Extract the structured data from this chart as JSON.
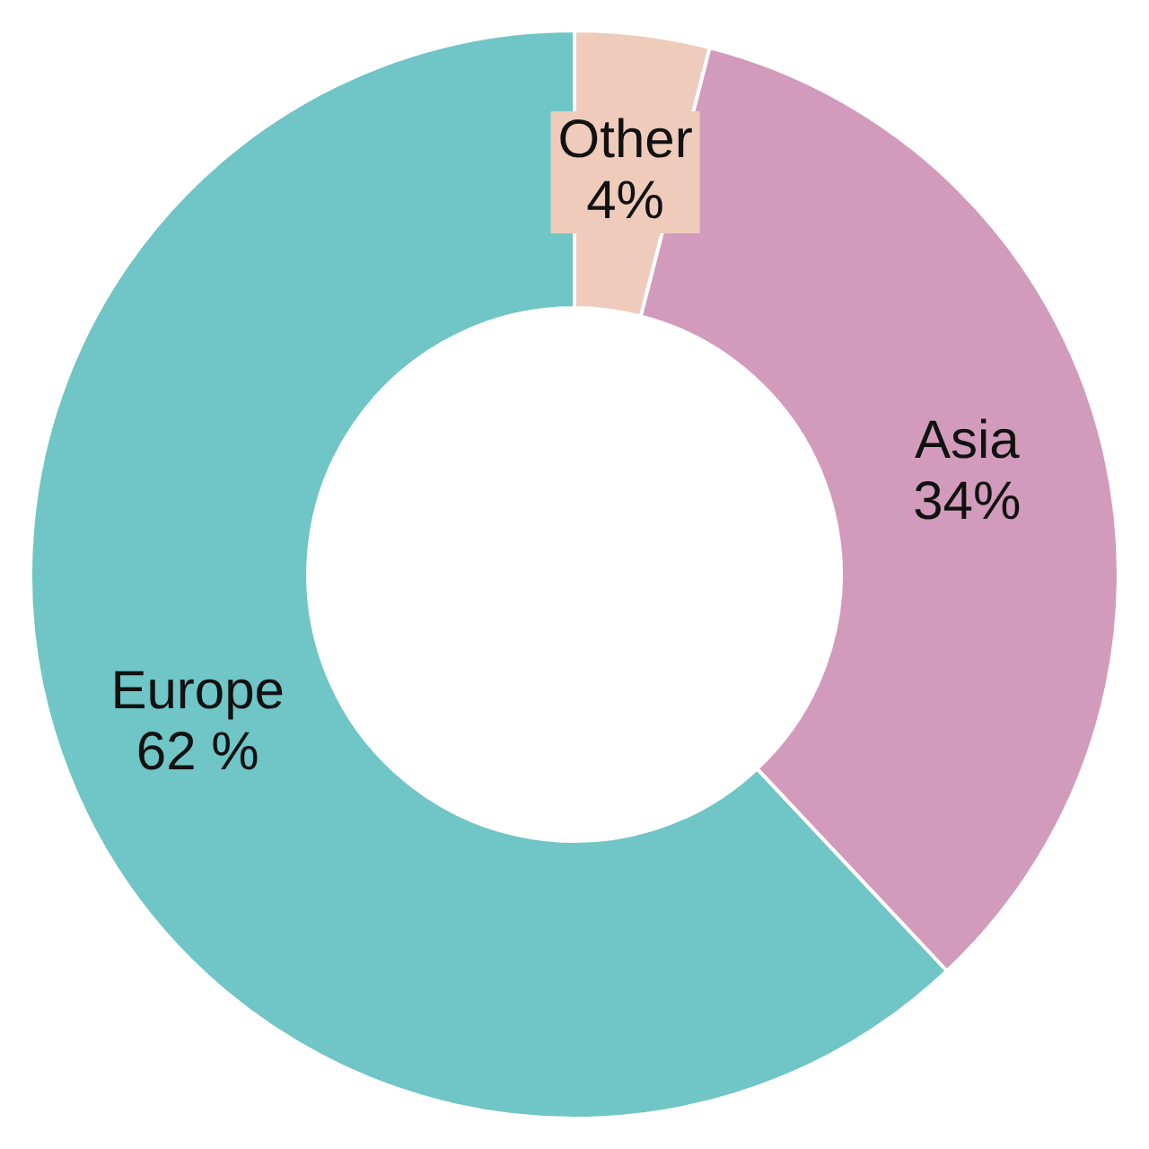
{
  "chart_data": {
    "type": "donut",
    "categories": [
      "Other",
      "Asia",
      "Europe"
    ],
    "values": [
      4,
      34,
      62
    ],
    "value_labels": [
      "4%",
      "34%",
      "62 %"
    ],
    "colors": [
      "#efcbbb",
      "#d29bbb",
      "#70c5c6"
    ],
    "legend": false
  }
}
